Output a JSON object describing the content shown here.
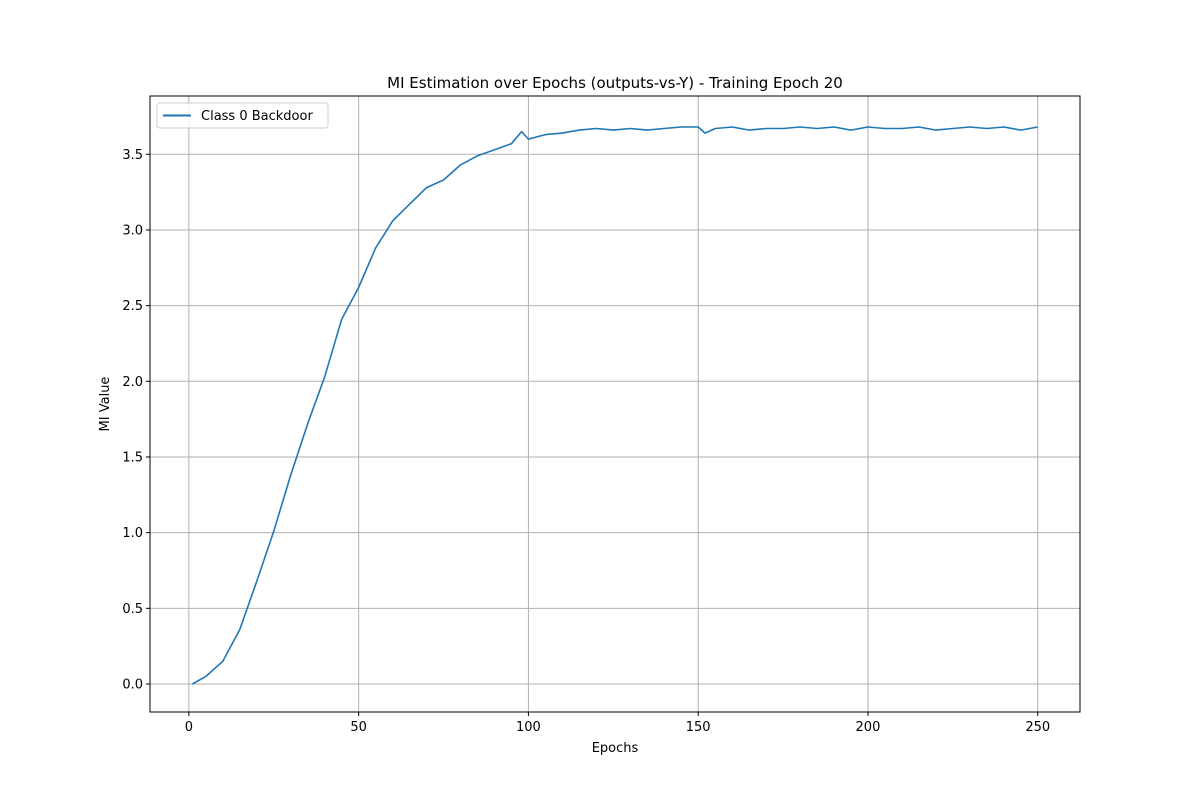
{
  "chart_data": {
    "type": "line",
    "title": "MI Estimation over Epochs (outputs-vs-Y) - Training Epoch 20",
    "xlabel": "Epochs",
    "ylabel": "MI Value",
    "xlim": [
      -11.45,
      262.45
    ],
    "ylim": [
      -0.185,
      3.885
    ],
    "xticks": [
      0,
      50,
      100,
      150,
      200,
      250
    ],
    "xtick_labels": [
      "0",
      "50",
      "100",
      "150",
      "200",
      "250"
    ],
    "yticks": [
      0.0,
      0.5,
      1.0,
      1.5,
      2.0,
      2.5,
      3.0,
      3.5
    ],
    "ytick_labels": [
      "0.0",
      "0.5",
      "1.0",
      "1.5",
      "2.0",
      "2.5",
      "3.0",
      "3.5"
    ],
    "grid": true,
    "legend_position": "top-left",
    "colors": {
      "series": "#1f77b4"
    },
    "series": [
      {
        "name": "Class 0 Backdoor",
        "x": [
          1,
          5,
          10,
          15,
          20,
          25,
          30,
          35,
          40,
          45,
          50,
          55,
          60,
          65,
          70,
          75,
          80,
          85,
          90,
          95,
          98,
          100,
          105,
          110,
          115,
          120,
          125,
          130,
          135,
          140,
          145,
          150,
          152,
          155,
          160,
          165,
          170,
          175,
          180,
          185,
          190,
          195,
          200,
          205,
          210,
          215,
          220,
          225,
          230,
          235,
          240,
          245,
          250
        ],
        "y": [
          0.0,
          0.05,
          0.15,
          0.36,
          0.68,
          1.01,
          1.38,
          1.72,
          2.03,
          2.41,
          2.62,
          2.88,
          3.06,
          3.17,
          3.28,
          3.33,
          3.43,
          3.49,
          3.53,
          3.57,
          3.65,
          3.6,
          3.63,
          3.64,
          3.66,
          3.67,
          3.66,
          3.67,
          3.66,
          3.67,
          3.68,
          3.68,
          3.64,
          3.67,
          3.68,
          3.66,
          3.67,
          3.67,
          3.68,
          3.67,
          3.68,
          3.66,
          3.68,
          3.67,
          3.67,
          3.68,
          3.66,
          3.67,
          3.68,
          3.67,
          3.68,
          3.66,
          3.68
        ]
      }
    ]
  }
}
